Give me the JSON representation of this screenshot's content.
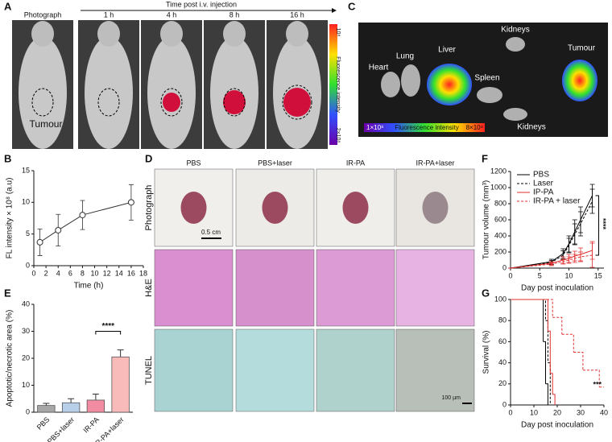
{
  "panel_labels": [
    "A",
    "B",
    "C",
    "D",
    "E",
    "F",
    "G"
  ],
  "panel_a": {
    "arrow_label": "Time post i.v. injection",
    "columns": [
      "Photograph",
      "1 h",
      "4 h",
      "8 h",
      "16 h"
    ],
    "tumour_label": "Tumour",
    "colorbar": {
      "top": "10⁸",
      "title": "Fluorescence intensity",
      "bottom": "2×10⁸"
    }
  },
  "panel_c": {
    "organs": [
      "Heart",
      "Lung",
      "Liver",
      "Spleen",
      "Kidneys",
      "Tumour",
      "Kidneys"
    ],
    "colorbar": {
      "min": "1×10⁸",
      "title": "Fluorescence intensity",
      "max": "8×10⁸"
    }
  },
  "panel_d": {
    "columns": [
      "PBS",
      "PBS+laser",
      "IR-PA",
      "IR-PA+laser"
    ],
    "rows": [
      "Photograph",
      "H&E",
      "TUNEL"
    ],
    "scale_bars": [
      "0.5 cm",
      "100 µm"
    ]
  },
  "chart_data": [
    {
      "type": "line",
      "x": [
        1,
        4,
        8,
        16
      ],
      "series": [
        {
          "values": [
            3.7,
            5.6,
            8.0,
            10.0
          ],
          "errors": [
            2.1,
            2.5,
            2.3,
            2.8
          ],
          "color": "#333333",
          "markers": true
        }
      ],
      "xlim": [
        0,
        18
      ],
      "xticks": [
        0,
        2,
        4,
        6,
        8,
        10,
        12,
        14,
        16,
        18
      ],
      "ylim": [
        0,
        15
      ],
      "yticks": [
        0,
        5,
        10,
        15
      ],
      "xlabel": "Time (h)",
      "ylabel": "FL intensity × 10⁸ (a.u)"
    },
    {
      "type": "bar",
      "categories": [
        "PBS",
        "PBS+laser",
        "IR-PA",
        "IR-PA+laser"
      ],
      "values": [
        2.5,
        3.5,
        4.5,
        20.5
      ],
      "errors": [
        0.8,
        1.5,
        2.2,
        2.6
      ],
      "colors": [
        "#a6a6a6",
        "#b7cfe8",
        "#f28ca2",
        "#f9baba"
      ],
      "ylim": [
        0,
        40
      ],
      "yticks": [
        0,
        10,
        20,
        30,
        40
      ],
      "ylabel": "Apoptotic/necrotic area (%)",
      "annotation": "****"
    },
    {
      "type": "line",
      "x": [
        0,
        7,
        9,
        10,
        11,
        12,
        14
      ],
      "series": [
        {
          "name": "PBS",
          "color": "#000000",
          "dashed": false,
          "values": [
            0,
            80,
            180,
            300,
            450,
            600,
            900
          ],
          "errors": [
            0,
            30,
            60,
            100,
            150,
            160,
            140
          ]
        },
        {
          "name": "Laser",
          "color": "#000000",
          "dashed": true,
          "values": [
            0,
            70,
            160,
            280,
            420,
            550,
            830
          ],
          "errors": [
            0,
            25,
            55,
            90,
            130,
            150,
            150
          ]
        },
        {
          "name": "IP-PA",
          "color": "#e03030",
          "dashed": false,
          "values": [
            0,
            60,
            100,
            120,
            150,
            170,
            220
          ],
          "errors": [
            0,
            20,
            40,
            50,
            60,
            80,
            110
          ]
        },
        {
          "name": "IR-PA + laser",
          "color": "#e03030",
          "dashed": true,
          "values": [
            0,
            50,
            80,
            100,
            120,
            140,
            160
          ],
          "errors": [
            0,
            20,
            30,
            40,
            50,
            60,
            150
          ]
        }
      ],
      "xlim": [
        0,
        16
      ],
      "xticks": [
        0,
        5,
        10,
        15
      ],
      "ylim": [
        0,
        1200
      ],
      "yticks": [
        0,
        200,
        400,
        600,
        800,
        1000,
        1200
      ],
      "xlabel": "Day post inoculation",
      "ylabel": "Tumour volume (mm³)",
      "annotation": "****"
    },
    {
      "type": "step",
      "series": [
        {
          "color": "#000000",
          "dashed": false,
          "x": [
            0,
            14,
            15,
            16
          ],
          "values": [
            100,
            60,
            20,
            0
          ]
        },
        {
          "color": "#000000",
          "dashed": true,
          "x": [
            0,
            15,
            16,
            17
          ],
          "values": [
            100,
            80,
            40,
            0
          ]
        },
        {
          "color": "#e03030",
          "dashed": false,
          "x": [
            0,
            16,
            17,
            18,
            19
          ],
          "values": [
            100,
            70,
            30,
            10,
            0
          ]
        },
        {
          "color": "#e03030",
          "dashed": true,
          "x": [
            0,
            18,
            22,
            27,
            31,
            38,
            40
          ],
          "values": [
            100,
            83,
            67,
            50,
            33,
            17,
            17
          ]
        }
      ],
      "xlim": [
        0,
        40
      ],
      "xticks": [
        0,
        10,
        20,
        30,
        40
      ],
      "ylim": [
        0,
        100
      ],
      "yticks": [
        0,
        20,
        40,
        60,
        80,
        100
      ],
      "xlabel": "Day post inoculation",
      "ylabel": "Survival (%)",
      "annotation": "***"
    }
  ]
}
